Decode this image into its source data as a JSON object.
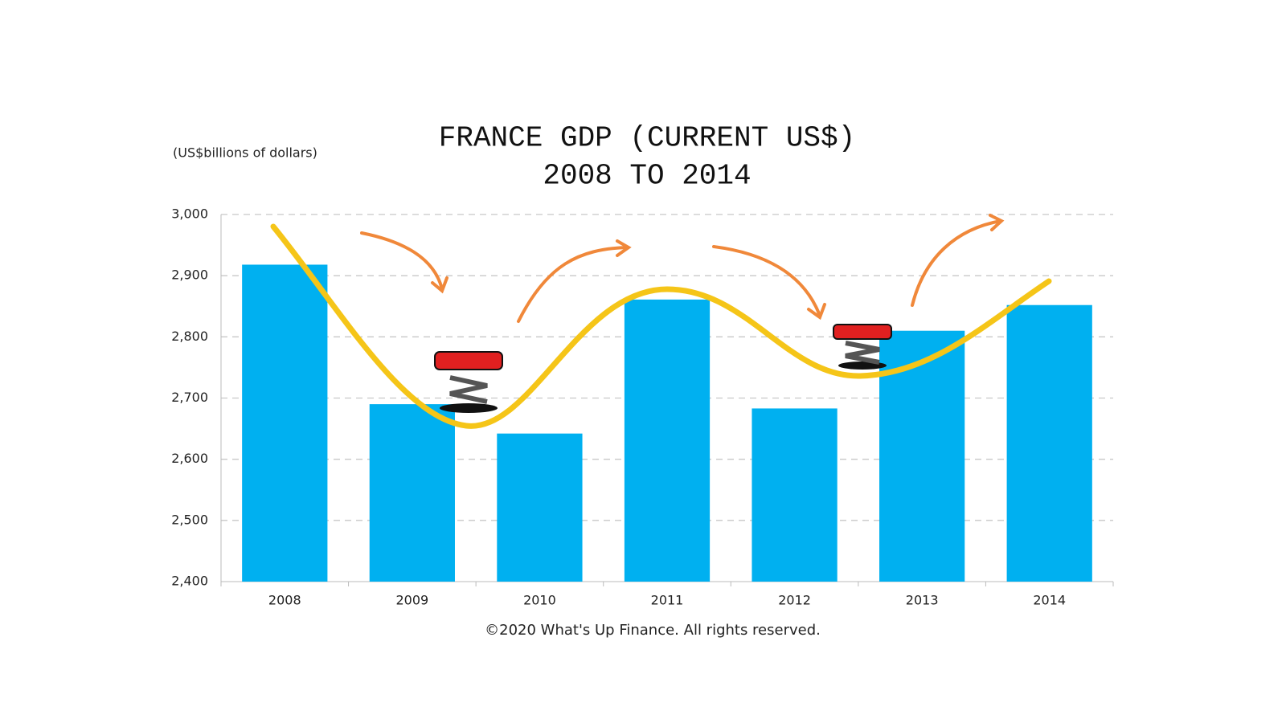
{
  "chart_data": {
    "type": "bar",
    "title": "FRANCE GDP (CURRENT US$)",
    "subtitle": "2008 TO 2014",
    "y_label": "(US$billions of dollars)",
    "footer": "©2020 What's Up Finance. All rights reserved.",
    "categories": [
      "2008",
      "2009",
      "2010",
      "2011",
      "2012",
      "2013",
      "2014"
    ],
    "values": [
      2918,
      2690,
      2642,
      2861,
      2683,
      2810,
      2852
    ],
    "color": "#00b0f0",
    "ylim": [
      2400,
      3000
    ],
    "yticks": [
      {
        "value": 2400,
        "label": "2,400"
      },
      {
        "value": 2500,
        "label": "2,500"
      },
      {
        "value": 2600,
        "label": "2,600"
      },
      {
        "value": 2700,
        "label": "2,700"
      },
      {
        "value": 2800,
        "label": "2,800"
      },
      {
        "value": 2900,
        "label": "2,900"
      },
      {
        "value": 3000,
        "label": "3,000"
      }
    ],
    "grid": true
  }
}
